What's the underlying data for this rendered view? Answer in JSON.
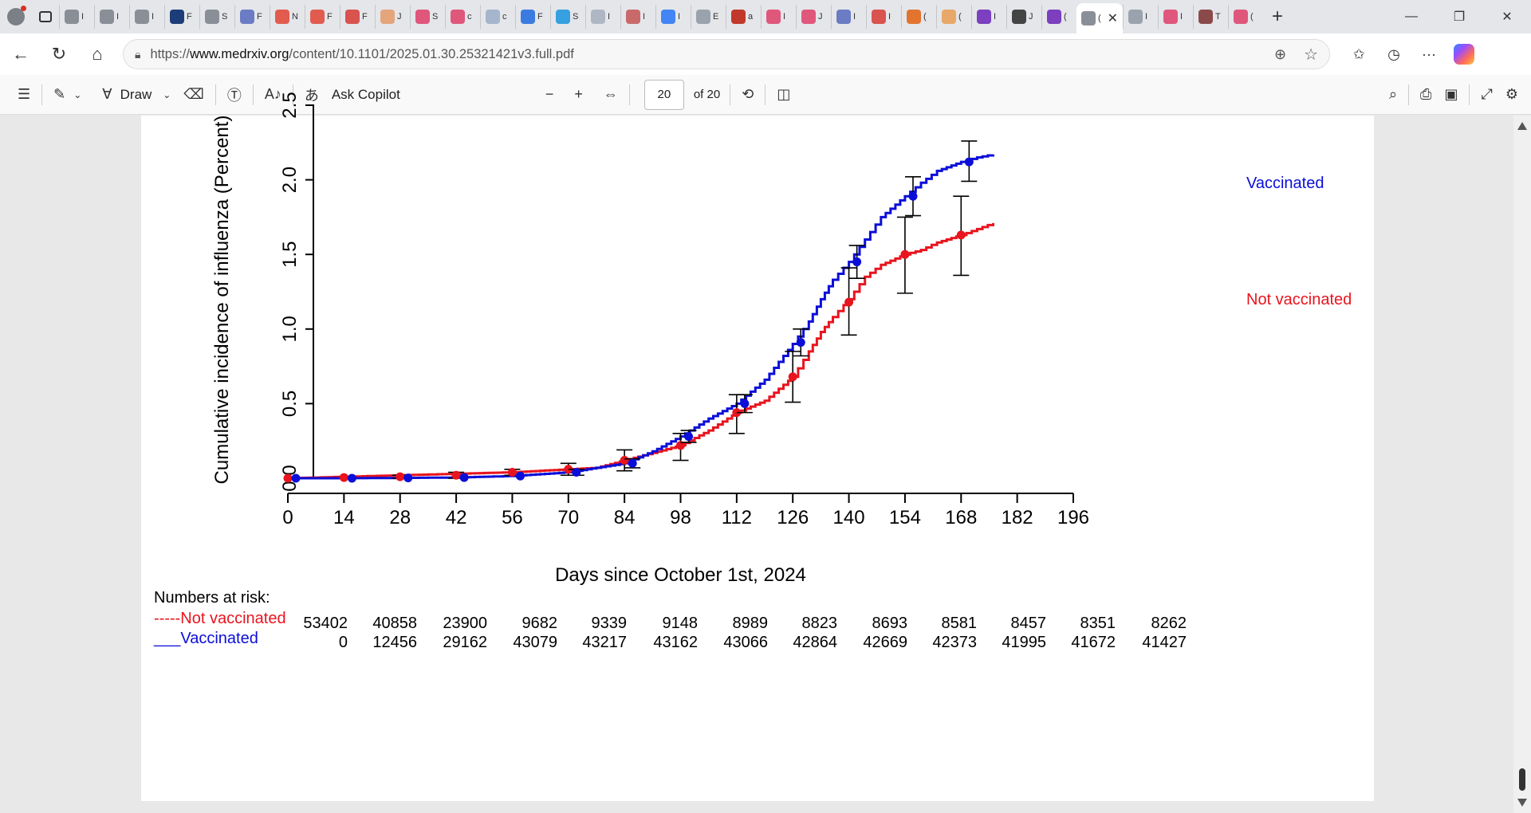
{
  "browser": {
    "tabs": [
      {
        "favicon_color": "#8a8f97",
        "label": "I"
      },
      {
        "favicon_color": "#8a8f97",
        "label": "I"
      },
      {
        "favicon_color": "#8a8f97",
        "label": "I"
      },
      {
        "favicon_color": "#1c3d78",
        "label": "F"
      },
      {
        "favicon_color": "#8a8f97",
        "label": "S"
      },
      {
        "favicon_color": "#6b7cc4",
        "label": "F"
      },
      {
        "favicon_color": "#e25b4f",
        "label": "N"
      },
      {
        "favicon_color": "#e25b4f",
        "label": "F"
      },
      {
        "favicon_color": "#d9534f",
        "label": "F"
      },
      {
        "favicon_color": "#e4a57c",
        "label": "J"
      },
      {
        "favicon_color": "#e0577c",
        "label": "S"
      },
      {
        "favicon_color": "#e0577c",
        "label": "c"
      },
      {
        "favicon_color": "#a5b6cc",
        "label": "c"
      },
      {
        "favicon_color": "#3b7be0",
        "label": "F"
      },
      {
        "favicon_color": "#36a0e0",
        "label": "S"
      },
      {
        "favicon_color": "#b0b7c4",
        "label": "I"
      },
      {
        "favicon_color": "#c96a6a",
        "label": "I"
      },
      {
        "favicon_color": "#4285f4",
        "label": "I"
      },
      {
        "favicon_color": "#9aa3ad",
        "label": "E"
      },
      {
        "favicon_color": "#c0392b",
        "label": "a"
      },
      {
        "favicon_color": "#e0577c",
        "label": "I"
      },
      {
        "favicon_color": "#e0577c",
        "label": "J"
      },
      {
        "favicon_color": "#6b7cc4",
        "label": "I"
      },
      {
        "favicon_color": "#d9534f",
        "label": "I"
      },
      {
        "favicon_color": "#e3742f",
        "label": "("
      },
      {
        "favicon_color": "#e8a86a",
        "label": "("
      },
      {
        "favicon_color": "#7b3fbf",
        "label": "I"
      },
      {
        "favicon_color": "#444444",
        "label": "J"
      },
      {
        "favicon_color": "#7b3fbf",
        "label": "("
      }
    ],
    "active_tab": {
      "label": "("
    },
    "tabs_after": [
      {
        "favicon_color": "#9aa3ad",
        "label": "I"
      },
      {
        "favicon_color": "#e0577c",
        "label": "I"
      },
      {
        "favicon_color": "#8b4a4a",
        "label": "T"
      },
      {
        "favicon_color": "#e0577c",
        "label": "("
      }
    ],
    "url_prefix": "https://",
    "url_domain": "www.medrxiv.org",
    "url_path": "/content/10.1101/2025.01.30.25321421v3.full.pdf"
  },
  "pdf_toolbar": {
    "draw_label": "Draw",
    "ask_copilot_label": "Ask Copilot",
    "page_number": "20",
    "page_total": "of 20"
  },
  "chart_data": {
    "type": "line",
    "xlabel": "Days since October 1st, 2024",
    "ylabel": "Cumulative incidence of influenza (Percent)",
    "x_ticks": [
      0,
      14,
      28,
      42,
      56,
      70,
      84,
      98,
      112,
      126,
      140,
      154,
      168,
      182,
      196
    ],
    "y_ticks": [
      "0.0",
      "0.5",
      "1.0",
      "1.5",
      "2.0",
      "2.5"
    ],
    "xlim": [
      0,
      196
    ],
    "ylim": [
      0,
      2.5
    ],
    "series": [
      {
        "name": "Not vaccinated",
        "color": "#e8141e",
        "x": [
          0,
          7,
          14,
          21,
          28,
          35,
          42,
          49,
          56,
          63,
          70,
          77,
          84,
          91,
          98,
          105,
          112,
          119,
          126,
          130,
          133,
          136,
          140,
          144,
          148,
          154,
          158,
          162,
          168,
          172,
          176
        ],
        "y": [
          0,
          0.005,
          0.01,
          0.015,
          0.02,
          0.025,
          0.03,
          0.035,
          0.04,
          0.05,
          0.06,
          0.07,
          0.12,
          0.17,
          0.22,
          0.32,
          0.44,
          0.52,
          0.68,
          0.85,
          0.98,
          1.08,
          1.2,
          1.35,
          1.43,
          1.5,
          1.53,
          1.58,
          1.63,
          1.67,
          1.71
        ],
        "points_x": [
          0,
          14,
          28,
          42,
          56,
          70,
          84,
          98,
          112,
          126,
          140,
          154,
          168
        ],
        "points_y": [
          0,
          0.005,
          0.01,
          0.02,
          0.04,
          0.06,
          0.12,
          0.22,
          0.44,
          0.68,
          1.18,
          1.5,
          1.63
        ],
        "ci_low": [
          0,
          0,
          0,
          0,
          0.02,
          0.02,
          0.05,
          0.12,
          0.3,
          0.51,
          0.96,
          1.24,
          1.36
        ],
        "ci_high": [
          0,
          0.01,
          0.02,
          0.04,
          0.06,
          0.1,
          0.19,
          0.3,
          0.56,
          0.85,
          1.41,
          1.75,
          1.89
        ]
      },
      {
        "name": "Vaccinated",
        "color": "#0b0ed8",
        "x": [
          0,
          14,
          28,
          42,
          56,
          70,
          84,
          91,
          98,
          105,
          112,
          119,
          126,
          130,
          133,
          136,
          140,
          144,
          148,
          154,
          158,
          162,
          168,
          172,
          176
        ],
        "y": [
          0,
          0,
          0.002,
          0.005,
          0.015,
          0.04,
          0.1,
          0.18,
          0.28,
          0.4,
          0.5,
          0.66,
          0.9,
          1.05,
          1.2,
          1.33,
          1.45,
          1.6,
          1.75,
          1.89,
          1.98,
          2.06,
          2.12,
          2.15,
          2.17
        ],
        "points_x": [
          2,
          16,
          30,
          44,
          58,
          72,
          86,
          100,
          114,
          128,
          142,
          156,
          170
        ],
        "points_y": [
          0,
          0,
          0.002,
          0.005,
          0.015,
          0.04,
          0.1,
          0.28,
          0.5,
          0.91,
          1.45,
          1.89,
          2.12
        ],
        "ci_low": [
          0,
          0,
          0,
          0,
          0.01,
          0.02,
          0.07,
          0.24,
          0.44,
          0.82,
          1.34,
          1.76,
          1.99
        ],
        "ci_high": [
          0,
          0,
          0.004,
          0.01,
          0.02,
          0.06,
          0.13,
          0.32,
          0.56,
          1.0,
          1.56,
          2.02,
          2.26
        ]
      }
    ],
    "risk_table": {
      "title": "Numbers at risk:",
      "rows": [
        {
          "label": "-----Not vaccinated",
          "color": "#e8141e",
          "values": [
            "53402",
            "40858",
            "23900",
            "9682",
            "9339",
            "9148",
            "8989",
            "8823",
            "8693",
            "8581",
            "8457",
            "8351",
            "8262"
          ]
        },
        {
          "label": "___Vaccinated",
          "color": "#0b0ed8",
          "values": [
            "0",
            "12456",
            "29162",
            "43079",
            "43217",
            "43162",
            "43066",
            "42864",
            "42669",
            "42373",
            "41995",
            "41672",
            "41427"
          ]
        }
      ]
    }
  }
}
